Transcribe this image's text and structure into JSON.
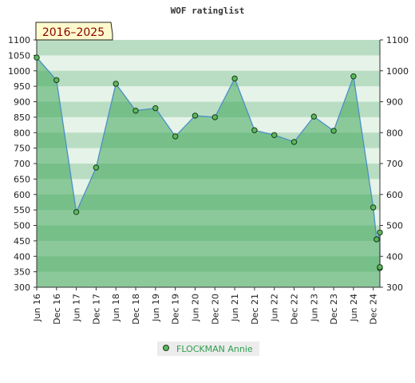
{
  "chart_data": {
    "type": "area",
    "title": "WOF ratinglist",
    "badge": "2016–2025",
    "ylim": [
      300,
      1100
    ],
    "yticks": [
      300,
      350,
      400,
      450,
      500,
      550,
      600,
      650,
      700,
      750,
      800,
      850,
      900,
      950,
      1000,
      1050,
      1100
    ],
    "yticks_right": [
      300,
      400,
      500,
      600,
      700,
      800,
      900,
      1000,
      1100
    ],
    "xlim": [
      "2016-06",
      "2025-02"
    ],
    "xticks": [
      "Jun 16",
      "Dec 16",
      "Jun 17",
      "Dec 17",
      "Jun 18",
      "Dec 18",
      "Jun 19",
      "Dec 19",
      "Jun 20",
      "Dec 20",
      "Jun 21",
      "Dec 21",
      "Jun 22",
      "Dec 22",
      "Jun 23",
      "Dec 23",
      "Jun 24",
      "Dec 24"
    ],
    "series": [
      {
        "name": "FLOCKMAN Annie",
        "x": [
          "2016-06",
          "2016-12",
          "2017-06",
          "2017-12",
          "2018-06",
          "2018-12",
          "2019-06",
          "2019-12",
          "2020-06",
          "2020-12",
          "2021-06",
          "2021-12",
          "2022-06",
          "2022-12",
          "2023-06",
          "2023-12",
          "2024-06",
          "2024-12",
          "2025-01",
          "2025-01",
          "2025-02",
          "2025-02",
          "2025-02"
        ],
        "values": [
          1043,
          970,
          543,
          687,
          958,
          871,
          879,
          788,
          855,
          850,
          975,
          808,
          792,
          770,
          852,
          806,
          982,
          558,
          455,
          455,
          477,
          362,
          365
        ]
      }
    ],
    "legend": "bottom",
    "colors": {
      "line": "#4a90c8",
      "fill": "#3fa55b",
      "marker_fill": "#5cb85c",
      "marker_stroke": "#1a3a1a",
      "badge_bg": "#fffacd",
      "badge_text": "#8b0000",
      "legend_bg": "#ececec",
      "legend_text": "#2e9e4f"
    }
  }
}
